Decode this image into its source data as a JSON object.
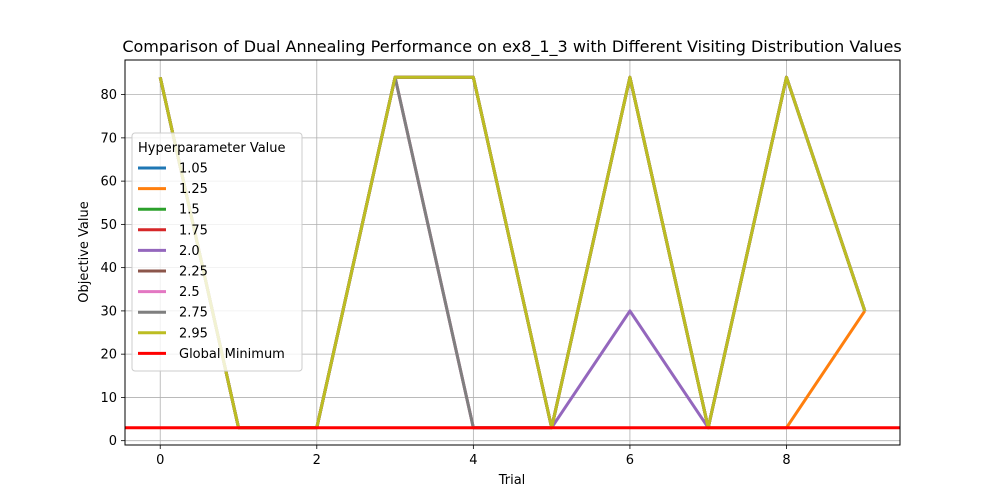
{
  "chart_data": {
    "type": "line",
    "title": "Comparison of Dual Annealing Performance on ex8_1_3 with Different Visiting Distribution Values",
    "xlabel": "Trial",
    "ylabel": "Objective Value",
    "xlim": [
      -0.45,
      9.45
    ],
    "ylim": [
      -1,
      88
    ],
    "xticks": [
      0,
      2,
      4,
      6,
      8
    ],
    "yticks": [
      0,
      10,
      20,
      30,
      40,
      50,
      60,
      70,
      80
    ],
    "grid": true,
    "legend_title": "Hyperparameter Value",
    "legend_location": "center-left",
    "x": [
      0,
      1,
      2,
      3,
      4,
      5,
      6,
      7,
      8,
      9
    ],
    "series": [
      {
        "name": "1.05",
        "color": "#1f77b4",
        "values": [
          84,
          3,
          3,
          84,
          84,
          3,
          84,
          3,
          84,
          30
        ]
      },
      {
        "name": "1.25",
        "color": "#ff7f0e",
        "values": [
          84,
          3,
          3,
          84,
          84,
          3,
          84,
          3,
          3,
          30
        ]
      },
      {
        "name": "1.5",
        "color": "#2ca02c",
        "values": [
          84,
          3,
          3,
          84,
          84,
          3,
          84,
          3,
          84,
          30
        ]
      },
      {
        "name": "1.75",
        "color": "#d62728",
        "values": [
          84,
          3,
          3,
          84,
          84,
          3,
          84,
          3,
          84,
          30
        ]
      },
      {
        "name": "2.0",
        "color": "#9467bd",
        "values": [
          84,
          3,
          3,
          84,
          84,
          3,
          30,
          3,
          84,
          30
        ]
      },
      {
        "name": "2.25",
        "color": "#8c564b",
        "values": [
          84,
          3,
          3,
          84,
          3,
          3,
          84,
          3,
          84,
          30
        ]
      },
      {
        "name": "2.5",
        "color": "#e377c2",
        "values": [
          84,
          3,
          3,
          84,
          3,
          3,
          84,
          3,
          84,
          30
        ]
      },
      {
        "name": "2.75",
        "color": "#7f7f7f",
        "values": [
          84,
          3,
          3,
          84,
          3,
          3,
          84,
          3,
          84,
          30
        ]
      },
      {
        "name": "2.95",
        "color": "#bcbd22",
        "values": [
          84,
          3,
          3,
          84,
          84,
          3,
          84,
          3,
          84,
          30
        ]
      }
    ],
    "reference_line": {
      "name": "Global Minimum",
      "color": "#ff0000",
      "value": 3
    }
  }
}
